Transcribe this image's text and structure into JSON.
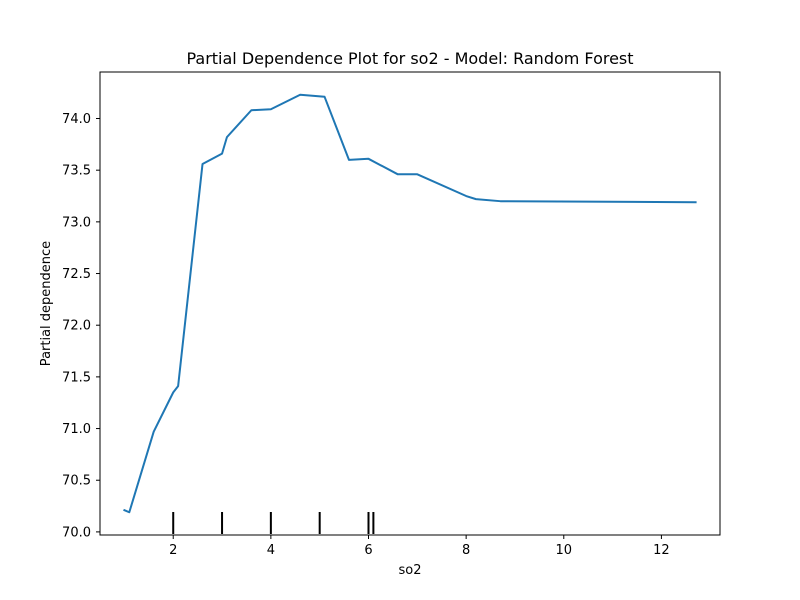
{
  "chart_data": {
    "type": "line",
    "title": "Partial Dependence Plot for so2 - Model: Random Forest",
    "xlabel": "so2",
    "ylabel": "Partial dependence",
    "xlim": [
      0.5,
      13.2
    ],
    "ylim": [
      69.97,
      74.45
    ],
    "grid": false,
    "xticks": [
      2,
      4,
      6,
      8,
      10,
      12
    ],
    "xtick_labels": [
      "2",
      "4",
      "6",
      "8",
      "10",
      "12"
    ],
    "yticks": [
      70.0,
      70.5,
      71.0,
      71.5,
      72.0,
      72.5,
      73.0,
      73.5,
      74.0
    ],
    "ytick_labels": [
      "70.0",
      "70.5",
      "71.0",
      "71.5",
      "72.0",
      "72.5",
      "73.0",
      "73.5",
      "74.0"
    ],
    "series": [
      {
        "color": "#1f77b4",
        "x": [
          1.0,
          1.1,
          1.6,
          2.0,
          2.1,
          2.6,
          3.0,
          3.1,
          3.6,
          4.0,
          4.6,
          5.1,
          5.6,
          6.0,
          6.6,
          7.0,
          8.0,
          8.2,
          8.7,
          12.7
        ],
        "y": [
          70.21,
          70.19,
          70.97,
          71.35,
          71.41,
          73.56,
          73.66,
          73.82,
          74.08,
          74.09,
          74.23,
          74.21,
          73.6,
          73.61,
          73.46,
          73.46,
          73.25,
          73.22,
          73.2,
          73.19
        ]
      }
    ],
    "rug": {
      "color": "#000000",
      "x": [
        2.0,
        3.0,
        4.0,
        5.0,
        6.0,
        6.1
      ]
    }
  }
}
